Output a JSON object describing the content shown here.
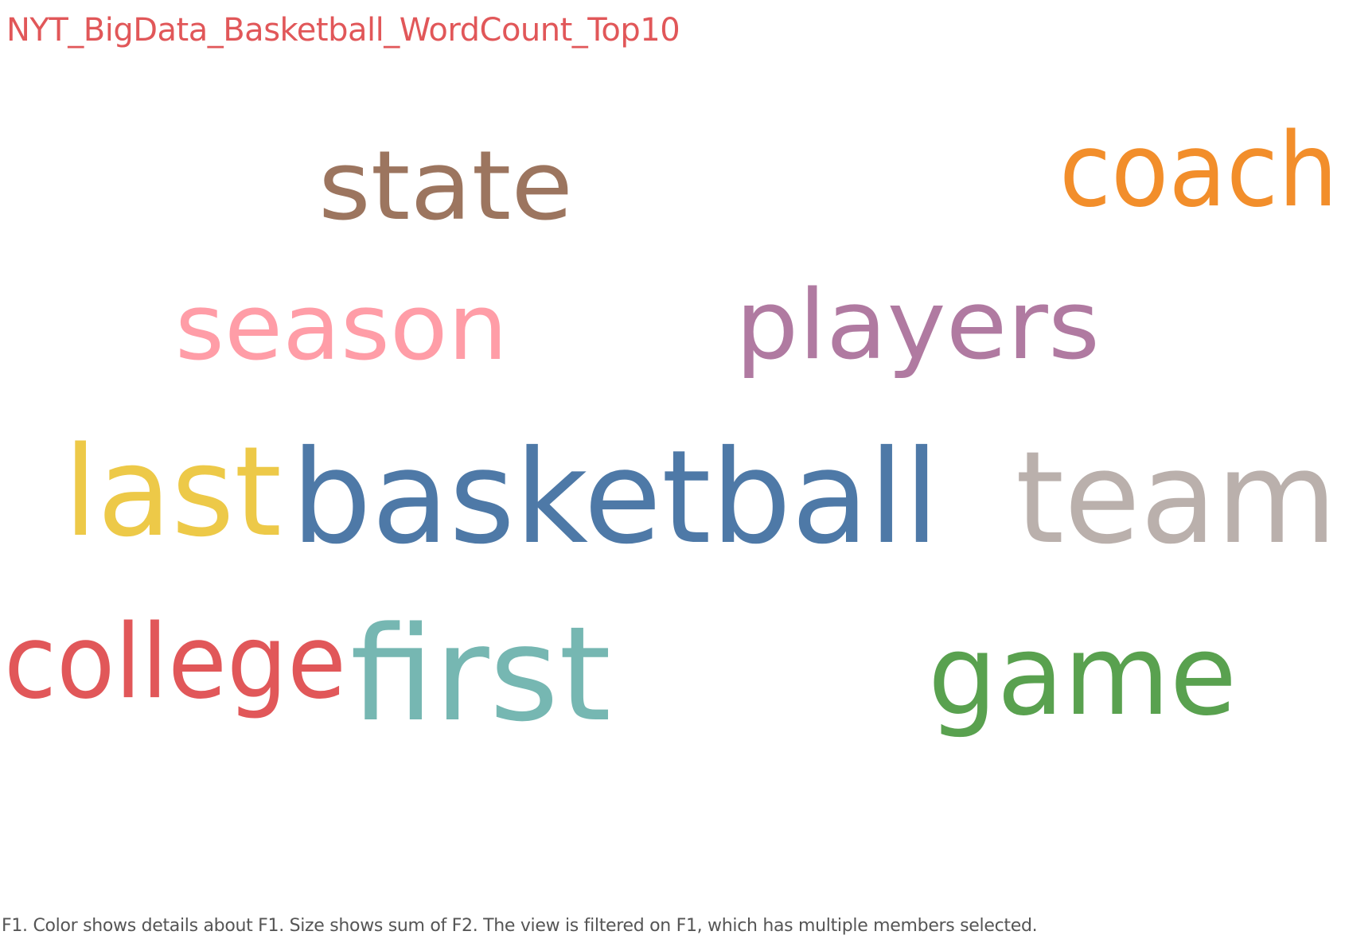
{
  "chart_data": {
    "type": "word_cloud",
    "title": "NYT_BigData_Basketball_WordCount_Top10",
    "caption": "F1.  Color shows details about F1.  Size shows sum of F2. The view is filtered on F1, which has multiple members selected.",
    "words": [
      {
        "text": "basketball",
        "color": "#4e79a7",
        "size_rank": 1
      },
      {
        "text": "team",
        "color": "#bab0ac",
        "size_rank": 2
      },
      {
        "text": "first",
        "color": "#76b7b2",
        "size_rank": 3
      },
      {
        "text": "last",
        "color": "#edc948",
        "size_rank": 4
      },
      {
        "text": "game",
        "color": "#59a14f",
        "size_rank": 5
      },
      {
        "text": "coach",
        "color": "#f28e2b",
        "size_rank": 6
      },
      {
        "text": "state",
        "color": "#9c755f",
        "size_rank": 7
      },
      {
        "text": "players",
        "color": "#b07aa1",
        "size_rank": 8
      },
      {
        "text": "college",
        "color": "#e15759",
        "size_rank": 9
      },
      {
        "text": "season",
        "color": "#ff9da7",
        "size_rank": 10
      }
    ]
  }
}
